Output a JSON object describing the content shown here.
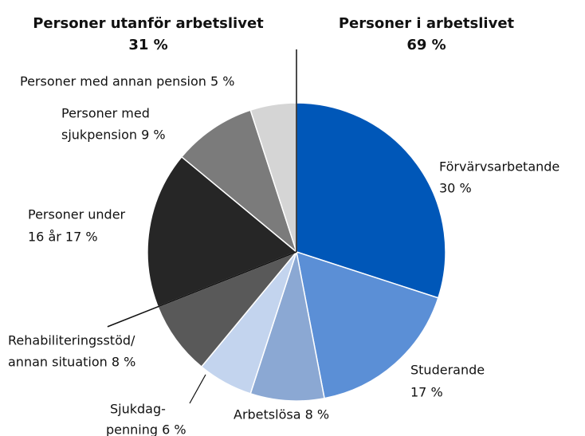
{
  "chart_data": {
    "type": "pie",
    "groups": [
      {
        "title": "Personer utanför arbetslivet",
        "value": 31,
        "value_label": "31 %"
      },
      {
        "title": "Personer i arbetslivet",
        "value": 69,
        "value_label": "69 %"
      }
    ],
    "labels": [
      [
        "Förvärvsarbetande",
        "30 %"
      ],
      [
        "Studerande",
        "17 %"
      ],
      [
        "Arbetslösa 8 %"
      ],
      [
        "Sjukdag-",
        "penning 6 %"
      ],
      [
        "Rehabiliteringsstöd/",
        "annan situation 8 %"
      ],
      [
        "Personer under",
        "16 år 17 %"
      ],
      [
        "Personer med",
        "sjukpension 9 %"
      ],
      [
        "Personer med annan pension 5 %"
      ]
    ],
    "values": [
      30,
      17,
      8,
      6,
      8,
      17,
      9,
      5
    ],
    "colors": [
      "#0057b8",
      "#5b8fd6",
      "#8ba8d3",
      "#c3d4ee",
      "#595959",
      "#262626",
      "#7b7b7b",
      "#d5d5d5"
    ]
  }
}
